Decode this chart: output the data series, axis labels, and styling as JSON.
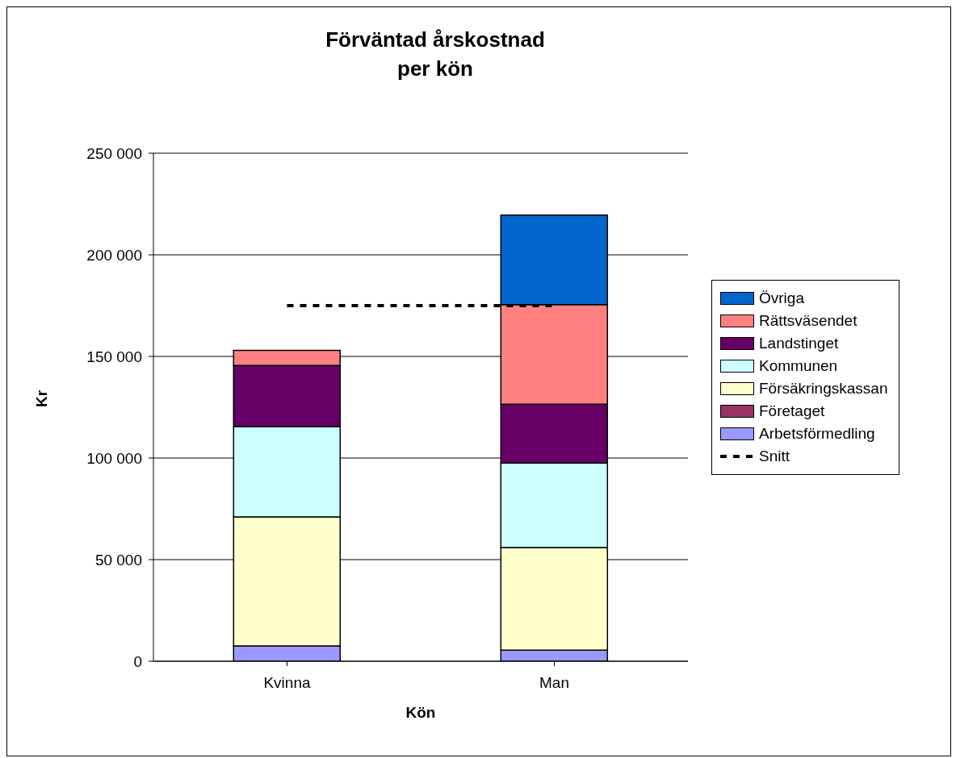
{
  "chart_data": {
    "type": "bar",
    "title": "Förväntad årskostnad per kön",
    "xlabel": "Kön",
    "ylabel": "Kr",
    "categories": [
      "Kvinna",
      "Man"
    ],
    "stacked": true,
    "ylim": [
      0,
      250000
    ],
    "yticks": [
      {
        "value": 0,
        "label": "0"
      },
      {
        "value": 50000,
        "label": "50 000"
      },
      {
        "value": 100000,
        "label": "100 000"
      },
      {
        "value": 150000,
        "label": "150 000"
      },
      {
        "value": 200000,
        "label": "200 000"
      },
      {
        "value": 250000,
        "label": "250 000"
      }
    ],
    "grid": "y",
    "legend": "right",
    "series": [
      {
        "name": "Arbetsförmedling",
        "color": "#9999ff",
        "values": [
          7500,
          5500
        ]
      },
      {
        "name": "Företaget",
        "color": "#993366",
        "values": [
          0,
          0
        ]
      },
      {
        "name": "Försäkringskassan",
        "color": "#ffffcc",
        "values": [
          63500,
          50500
        ]
      },
      {
        "name": "Kommunen",
        "color": "#ccffff",
        "values": [
          44500,
          41500
        ]
      },
      {
        "name": "Landstinget",
        "color": "#660066",
        "values": [
          30000,
          29000
        ]
      },
      {
        "name": "Rättsväsendet",
        "color": "#ff8080",
        "values": [
          7500,
          49000
        ]
      },
      {
        "name": "Övriga",
        "color": "#0066cc",
        "values": [
          0,
          44000
        ]
      },
      {
        "name": "Snitt",
        "type": "line",
        "line_style": "dashed",
        "color": "#000000",
        "values": [
          175000,
          175000
        ]
      }
    ]
  }
}
